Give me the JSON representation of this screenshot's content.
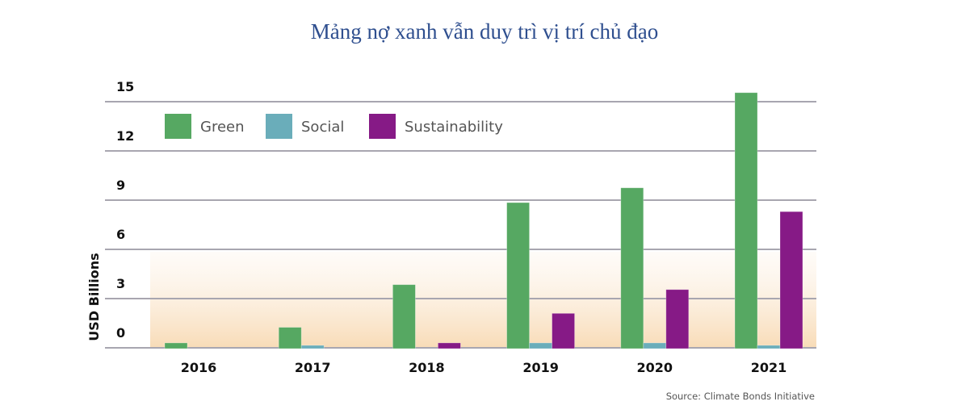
{
  "title": "Mảng nợ xanh vẫn duy trì vị trí chủ đạo",
  "chart_data": {
    "type": "bar",
    "title": "Mảng nợ xanh vẫn duy trì vị trí chủ đạo",
    "xlabel": "",
    "ylabel": "USD Billions",
    "categories": [
      "2016",
      "2017",
      "2018",
      "2019",
      "2020",
      "2021"
    ],
    "series": [
      {
        "name": "Green",
        "color": "#56a862",
        "values": [
          0.3,
          1.25,
          3.85,
          8.85,
          9.75,
          15.55
        ]
      },
      {
        "name": "Social",
        "color": "#6aadba",
        "values": [
          0.0,
          0.15,
          0.0,
          0.3,
          0.3,
          0.15
        ]
      },
      {
        "name": "Sustainability",
        "color": "#861a86",
        "values": [
          0.0,
          0.0,
          0.3,
          2.1,
          3.55,
          8.3
        ]
      }
    ],
    "ylim": [
      0,
      15
    ],
    "yticks": [
      0,
      3,
      6,
      9,
      12,
      15
    ],
    "grid": true,
    "legend_position": "top-left",
    "source": "Source: Climate Bonds Initiative"
  }
}
